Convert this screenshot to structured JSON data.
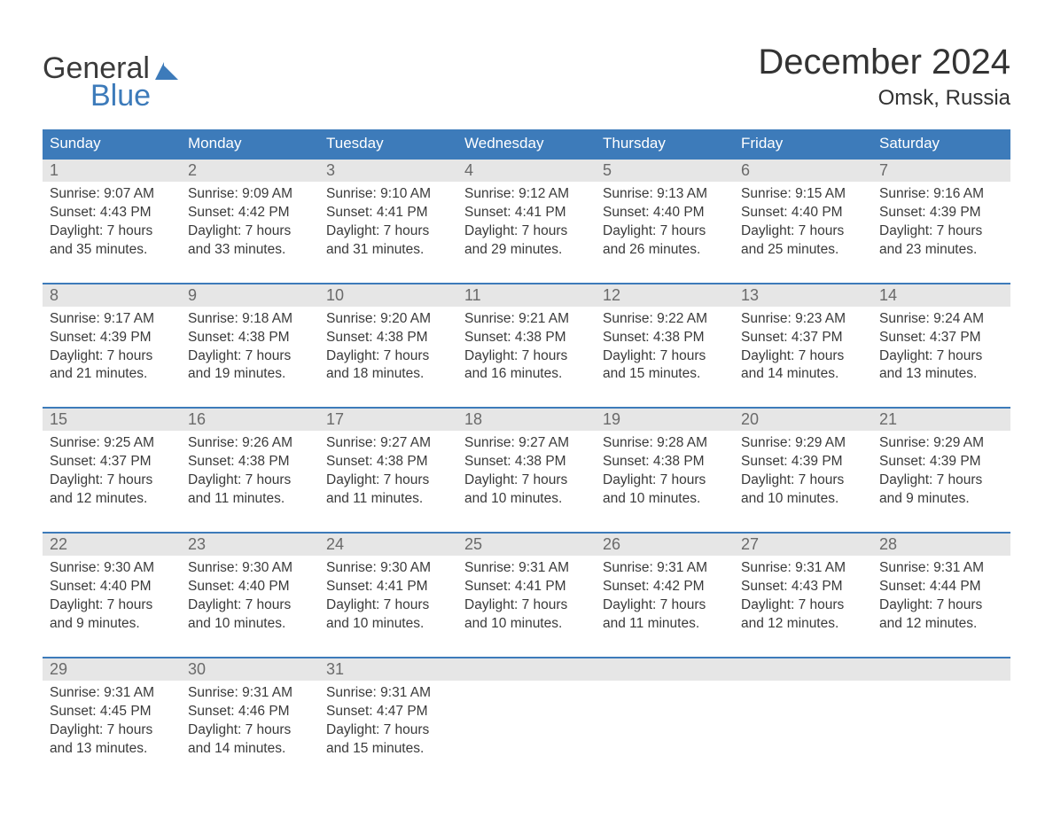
{
  "colors": {
    "header_bg": "#3d7bba",
    "header_text": "#ffffff",
    "daynum_bg": "#e6e6e6",
    "daynum_text": "#6a6a6a",
    "body_text": "#3a3a3a",
    "week_border": "#3d7bba",
    "logo_blue": "#3d7bba",
    "background": "#ffffff"
  },
  "logo": {
    "text_general": "General",
    "text_blue": "Blue"
  },
  "header": {
    "title": "December 2024",
    "subtitle": "Omsk, Russia"
  },
  "dow": [
    "Sunday",
    "Monday",
    "Tuesday",
    "Wednesday",
    "Thursday",
    "Friday",
    "Saturday"
  ],
  "weeks": [
    [
      {
        "n": "1",
        "sunrise": "Sunrise: 9:07 AM",
        "sunset": "Sunset: 4:43 PM",
        "dl1": "Daylight: 7 hours",
        "dl2": "and 35 minutes."
      },
      {
        "n": "2",
        "sunrise": "Sunrise: 9:09 AM",
        "sunset": "Sunset: 4:42 PM",
        "dl1": "Daylight: 7 hours",
        "dl2": "and 33 minutes."
      },
      {
        "n": "3",
        "sunrise": "Sunrise: 9:10 AM",
        "sunset": "Sunset: 4:41 PM",
        "dl1": "Daylight: 7 hours",
        "dl2": "and 31 minutes."
      },
      {
        "n": "4",
        "sunrise": "Sunrise: 9:12 AM",
        "sunset": "Sunset: 4:41 PM",
        "dl1": "Daylight: 7 hours",
        "dl2": "and 29 minutes."
      },
      {
        "n": "5",
        "sunrise": "Sunrise: 9:13 AM",
        "sunset": "Sunset: 4:40 PM",
        "dl1": "Daylight: 7 hours",
        "dl2": "and 26 minutes."
      },
      {
        "n": "6",
        "sunrise": "Sunrise: 9:15 AM",
        "sunset": "Sunset: 4:40 PM",
        "dl1": "Daylight: 7 hours",
        "dl2": "and 25 minutes."
      },
      {
        "n": "7",
        "sunrise": "Sunrise: 9:16 AM",
        "sunset": "Sunset: 4:39 PM",
        "dl1": "Daylight: 7 hours",
        "dl2": "and 23 minutes."
      }
    ],
    [
      {
        "n": "8",
        "sunrise": "Sunrise: 9:17 AM",
        "sunset": "Sunset: 4:39 PM",
        "dl1": "Daylight: 7 hours",
        "dl2": "and 21 minutes."
      },
      {
        "n": "9",
        "sunrise": "Sunrise: 9:18 AM",
        "sunset": "Sunset: 4:38 PM",
        "dl1": "Daylight: 7 hours",
        "dl2": "and 19 minutes."
      },
      {
        "n": "10",
        "sunrise": "Sunrise: 9:20 AM",
        "sunset": "Sunset: 4:38 PM",
        "dl1": "Daylight: 7 hours",
        "dl2": "and 18 minutes."
      },
      {
        "n": "11",
        "sunrise": "Sunrise: 9:21 AM",
        "sunset": "Sunset: 4:38 PM",
        "dl1": "Daylight: 7 hours",
        "dl2": "and 16 minutes."
      },
      {
        "n": "12",
        "sunrise": "Sunrise: 9:22 AM",
        "sunset": "Sunset: 4:38 PM",
        "dl1": "Daylight: 7 hours",
        "dl2": "and 15 minutes."
      },
      {
        "n": "13",
        "sunrise": "Sunrise: 9:23 AM",
        "sunset": "Sunset: 4:37 PM",
        "dl1": "Daylight: 7 hours",
        "dl2": "and 14 minutes."
      },
      {
        "n": "14",
        "sunrise": "Sunrise: 9:24 AM",
        "sunset": "Sunset: 4:37 PM",
        "dl1": "Daylight: 7 hours",
        "dl2": "and 13 minutes."
      }
    ],
    [
      {
        "n": "15",
        "sunrise": "Sunrise: 9:25 AM",
        "sunset": "Sunset: 4:37 PM",
        "dl1": "Daylight: 7 hours",
        "dl2": "and 12 minutes."
      },
      {
        "n": "16",
        "sunrise": "Sunrise: 9:26 AM",
        "sunset": "Sunset: 4:38 PM",
        "dl1": "Daylight: 7 hours",
        "dl2": "and 11 minutes."
      },
      {
        "n": "17",
        "sunrise": "Sunrise: 9:27 AM",
        "sunset": "Sunset: 4:38 PM",
        "dl1": "Daylight: 7 hours",
        "dl2": "and 11 minutes."
      },
      {
        "n": "18",
        "sunrise": "Sunrise: 9:27 AM",
        "sunset": "Sunset: 4:38 PM",
        "dl1": "Daylight: 7 hours",
        "dl2": "and 10 minutes."
      },
      {
        "n": "19",
        "sunrise": "Sunrise: 9:28 AM",
        "sunset": "Sunset: 4:38 PM",
        "dl1": "Daylight: 7 hours",
        "dl2": "and 10 minutes."
      },
      {
        "n": "20",
        "sunrise": "Sunrise: 9:29 AM",
        "sunset": "Sunset: 4:39 PM",
        "dl1": "Daylight: 7 hours",
        "dl2": "and 10 minutes."
      },
      {
        "n": "21",
        "sunrise": "Sunrise: 9:29 AM",
        "sunset": "Sunset: 4:39 PM",
        "dl1": "Daylight: 7 hours",
        "dl2": "and 9 minutes."
      }
    ],
    [
      {
        "n": "22",
        "sunrise": "Sunrise: 9:30 AM",
        "sunset": "Sunset: 4:40 PM",
        "dl1": "Daylight: 7 hours",
        "dl2": "and 9 minutes."
      },
      {
        "n": "23",
        "sunrise": "Sunrise: 9:30 AM",
        "sunset": "Sunset: 4:40 PM",
        "dl1": "Daylight: 7 hours",
        "dl2": "and 10 minutes."
      },
      {
        "n": "24",
        "sunrise": "Sunrise: 9:30 AM",
        "sunset": "Sunset: 4:41 PM",
        "dl1": "Daylight: 7 hours",
        "dl2": "and 10 minutes."
      },
      {
        "n": "25",
        "sunrise": "Sunrise: 9:31 AM",
        "sunset": "Sunset: 4:41 PM",
        "dl1": "Daylight: 7 hours",
        "dl2": "and 10 minutes."
      },
      {
        "n": "26",
        "sunrise": "Sunrise: 9:31 AM",
        "sunset": "Sunset: 4:42 PM",
        "dl1": "Daylight: 7 hours",
        "dl2": "and 11 minutes."
      },
      {
        "n": "27",
        "sunrise": "Sunrise: 9:31 AM",
        "sunset": "Sunset: 4:43 PM",
        "dl1": "Daylight: 7 hours",
        "dl2": "and 12 minutes."
      },
      {
        "n": "28",
        "sunrise": "Sunrise: 9:31 AM",
        "sunset": "Sunset: 4:44 PM",
        "dl1": "Daylight: 7 hours",
        "dl2": "and 12 minutes."
      }
    ],
    [
      {
        "n": "29",
        "sunrise": "Sunrise: 9:31 AM",
        "sunset": "Sunset: 4:45 PM",
        "dl1": "Daylight: 7 hours",
        "dl2": "and 13 minutes."
      },
      {
        "n": "30",
        "sunrise": "Sunrise: 9:31 AM",
        "sunset": "Sunset: 4:46 PM",
        "dl1": "Daylight: 7 hours",
        "dl2": "and 14 minutes."
      },
      {
        "n": "31",
        "sunrise": "Sunrise: 9:31 AM",
        "sunset": "Sunset: 4:47 PM",
        "dl1": "Daylight: 7 hours",
        "dl2": "and 15 minutes."
      },
      null,
      null,
      null,
      null
    ]
  ]
}
